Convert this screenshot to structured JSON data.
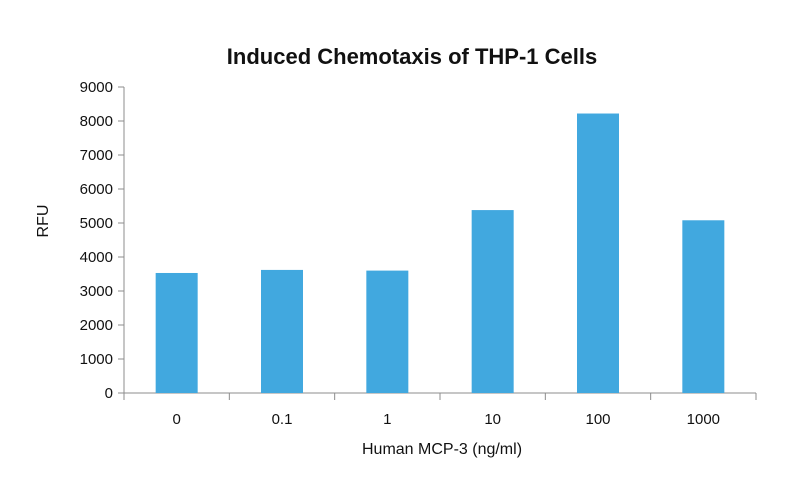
{
  "chart_data": {
    "type": "bar",
    "title": "Induced Chemotaxis of THP-1 Cells",
    "xlabel": "Human MCP-3 (ng/ml)",
    "ylabel": "RFU",
    "categories": [
      "0",
      "0.1",
      "1",
      "10",
      "100",
      "1000"
    ],
    "values": [
      3530,
      3620,
      3600,
      5380,
      8220,
      5080
    ],
    "ylim": [
      0,
      9000
    ],
    "yticks": [
      "0",
      "1000",
      "2000",
      "3000",
      "4000",
      "5000",
      "6000",
      "7000",
      "8000",
      "9000"
    ],
    "grid": false,
    "legend": "none",
    "bar_color": "#41a8df",
    "axis_color": "#8c8c8c"
  }
}
